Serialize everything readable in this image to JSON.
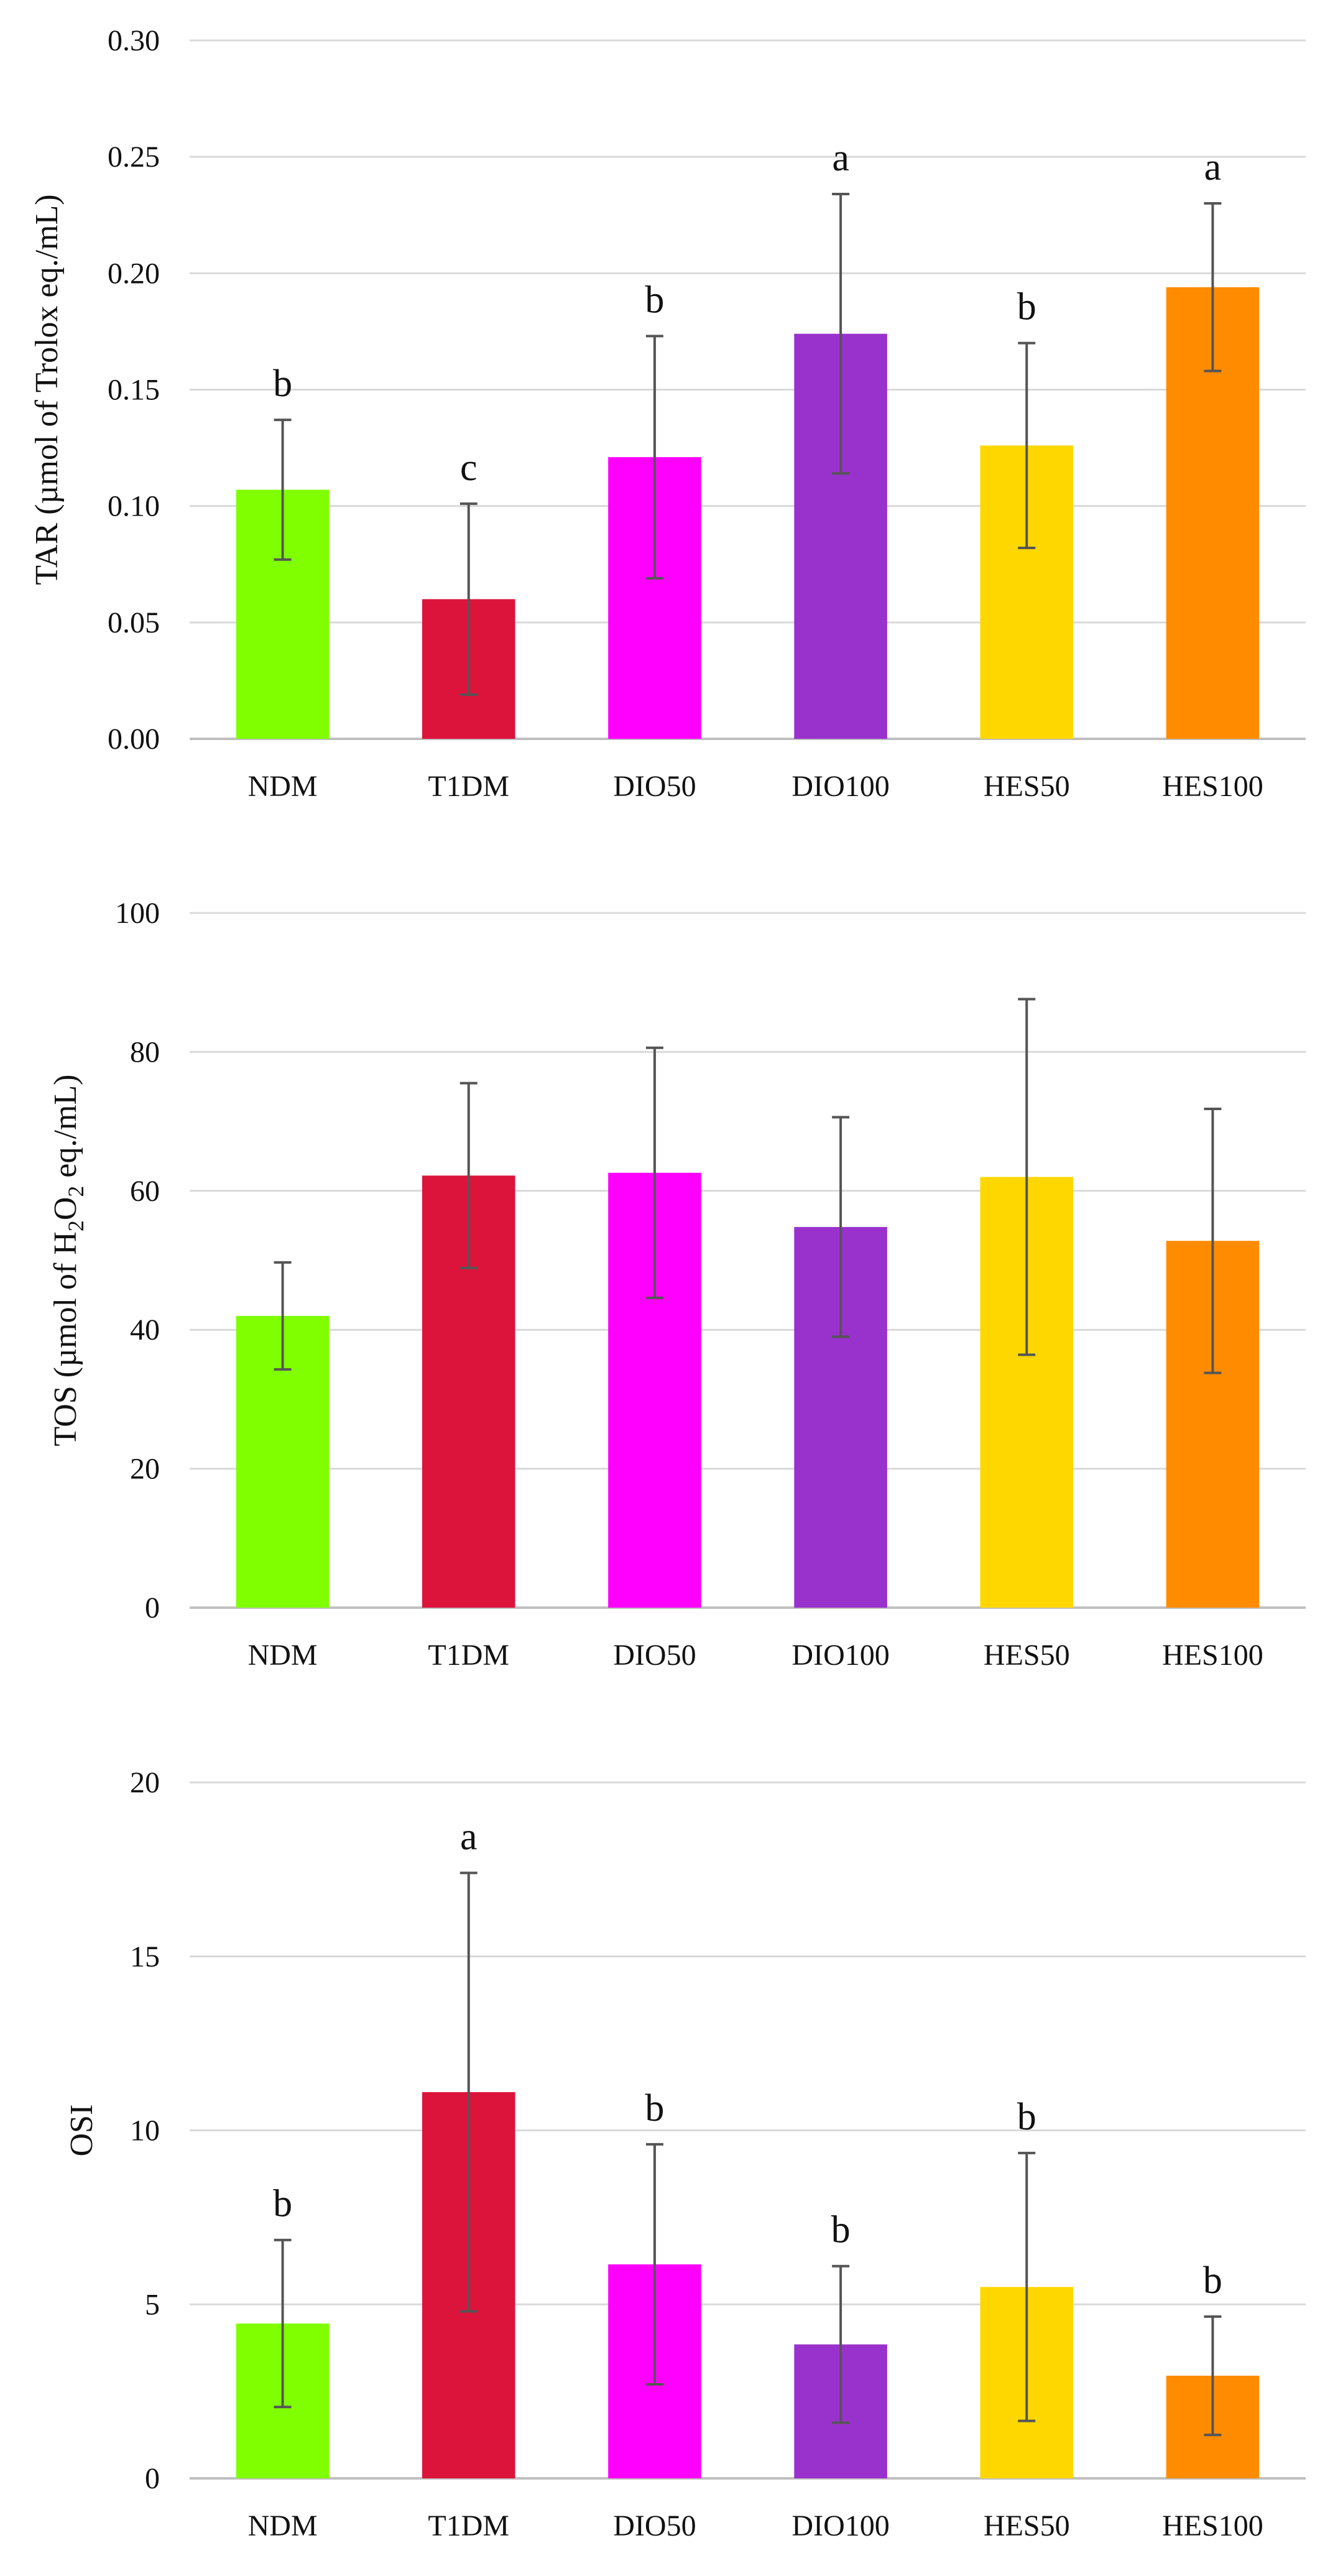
{
  "chart_data": [
    {
      "type": "bar",
      "title": "",
      "xlabel": "",
      "ylabel": "TAR (µmol of Trolox eq./mL)",
      "ylabel_parts": [
        {
          "text": "TAR (µmol of Trolox eq./mL)",
          "sub": false
        }
      ],
      "categories": [
        "NDM",
        "T1DM",
        "DIO50",
        "DIO100",
        "HES50",
        "HES100"
      ],
      "values": [
        0.107,
        0.06,
        0.121,
        0.174,
        0.126,
        0.194
      ],
      "errors": [
        0.03,
        0.041,
        0.052,
        0.06,
        0.044,
        0.036
      ],
      "significance": [
        "b",
        "c",
        "b",
        "a",
        "b",
        "a"
      ],
      "ylim": [
        0,
        0.3
      ],
      "yticks": [
        0.0,
        0.05,
        0.1,
        0.15,
        0.2,
        0.25,
        0.3
      ],
      "ytick_labels": [
        "0.00",
        "0.05",
        "0.10",
        "0.15",
        "0.20",
        "0.25",
        "0.30"
      ],
      "grid": true,
      "legend": "none"
    },
    {
      "type": "bar",
      "title": "",
      "xlabel": "",
      "ylabel": "TOS (µmol of H2O2 eq./mL)",
      "ylabel_parts": [
        {
          "text": "TOS (µmol of H",
          "sub": false
        },
        {
          "text": "2",
          "sub": true
        },
        {
          "text": "O",
          "sub": false
        },
        {
          "text": "2",
          "sub": true
        },
        {
          "text": " eq./mL)",
          "sub": false
        }
      ],
      "categories": [
        "NDM",
        "T1DM",
        "DIO50",
        "DIO100",
        "HES50",
        "HES100"
      ],
      "values": [
        42.0,
        62.2,
        62.6,
        54.8,
        62.0,
        52.8
      ],
      "errors": [
        7.7,
        13.3,
        18.0,
        15.8,
        25.6,
        19.0
      ],
      "significance": [
        "",
        "",
        "",
        "",
        "",
        ""
      ],
      "ylim": [
        0,
        100
      ],
      "yticks": [
        0,
        20,
        40,
        60,
        80,
        100
      ],
      "ytick_labels": [
        "0",
        "20",
        "40",
        "60",
        "80",
        "100"
      ],
      "grid": true,
      "legend": "none"
    },
    {
      "type": "bar",
      "title": "",
      "xlabel": "",
      "ylabel": "OSI",
      "ylabel_parts": [
        {
          "text": "OSI",
          "sub": false
        }
      ],
      "categories": [
        "NDM",
        "T1DM",
        "DIO50",
        "DIO100",
        "HES50",
        "HES100"
      ],
      "values": [
        4.45,
        11.1,
        6.15,
        3.85,
        5.5,
        2.95
      ],
      "errors": [
        2.4,
        6.3,
        3.45,
        2.25,
        3.85,
        1.7
      ],
      "significance": [
        "b",
        "a",
        "b",
        "b",
        "b",
        "b"
      ],
      "ylim": [
        0,
        20
      ],
      "yticks": [
        0,
        5,
        10,
        15,
        20
      ],
      "ytick_labels": [
        "0",
        "5",
        "10",
        "15",
        "20"
      ],
      "grid": true,
      "legend": "none"
    }
  ],
  "colors": {
    "NDM": "#7FFF00",
    "T1DM": "#DC143C",
    "DIO50": "#FF00FF",
    "DIO100": "#9932CC",
    "HES50": "#FFD700",
    "HES100": "#FF8C00",
    "grid": "#d9d9d9",
    "axis": "#bfbfbf",
    "errorbar": "#555555"
  }
}
